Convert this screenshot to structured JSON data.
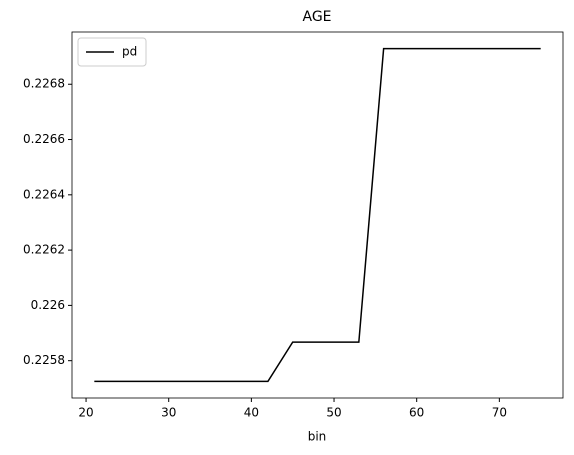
{
  "chart_data": {
    "type": "line",
    "title": "AGE",
    "x_label": "bin",
    "x": [
      21,
      42,
      45,
      53,
      56,
      75
    ],
    "series": [
      {
        "name": "pd",
        "color": "#000000",
        "values": [
          0.225725,
          0.225725,
          0.225867,
          0.225867,
          0.226929,
          0.226929
        ]
      }
    ],
    "xlim": [
      18.3,
      77.7
    ],
    "xticks": [
      20,
      30,
      40,
      50,
      60,
      70
    ],
    "ylim": [
      0.225665,
      0.226989
    ],
    "yticks": [
      0.2258,
      0.226,
      0.2262,
      0.2264,
      0.2266,
      0.2268
    ],
    "grid": false,
    "legend": "upper-left"
  }
}
